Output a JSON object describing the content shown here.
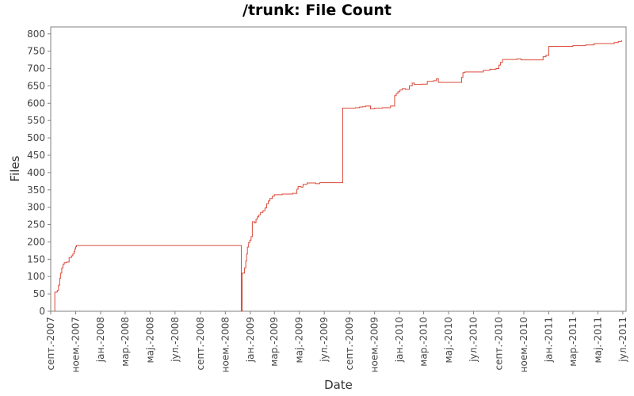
{
  "chart_data": {
    "type": "line",
    "title": "/trunk: File Count",
    "xlabel": "Date",
    "ylabel": "Files",
    "ylim": [
      0,
      820
    ],
    "yticks": [
      0,
      50,
      100,
      150,
      200,
      250,
      300,
      350,
      400,
      450,
      500,
      550,
      600,
      650,
      700,
      750,
      800
    ],
    "xlim": [
      "2007-09-01",
      "2011-07-09"
    ],
    "xticks": [
      {
        "date": "2007-09-01",
        "label": "септ.-2007"
      },
      {
        "date": "2007-11-01",
        "label": "ноем.-2007"
      },
      {
        "date": "2008-01-01",
        "label": "јан.-2008"
      },
      {
        "date": "2008-03-01",
        "label": "мар.-2008"
      },
      {
        "date": "2008-05-01",
        "label": "мај.-2008"
      },
      {
        "date": "2008-07-01",
        "label": "јул.-2008"
      },
      {
        "date": "2008-09-01",
        "label": "септ.-2008"
      },
      {
        "date": "2008-11-01",
        "label": "ноем.-2008"
      },
      {
        "date": "2009-01-01",
        "label": "јан.-2009"
      },
      {
        "date": "2009-03-01",
        "label": "мар.-2009"
      },
      {
        "date": "2009-05-01",
        "label": "мај.-2009"
      },
      {
        "date": "2009-07-01",
        "label": "јул.-2009"
      },
      {
        "date": "2009-09-01",
        "label": "септ.-2009"
      },
      {
        "date": "2009-11-01",
        "label": "ноем.-2009"
      },
      {
        "date": "2010-01-01",
        "label": "јан.-2010"
      },
      {
        "date": "2010-03-01",
        "label": "мар.-2010"
      },
      {
        "date": "2010-05-01",
        "label": "мај.-2010"
      },
      {
        "date": "2010-07-01",
        "label": "јул.-2010"
      },
      {
        "date": "2010-09-01",
        "label": "септ.-2010"
      },
      {
        "date": "2010-11-01",
        "label": "ноем.-2010"
      },
      {
        "date": "2011-01-01",
        "label": "јан.-2011"
      },
      {
        "date": "2011-03-01",
        "label": "мар.-2011"
      },
      {
        "date": "2011-05-01",
        "label": "мај.-2011"
      },
      {
        "date": "2011-07-01",
        "label": "јул.-2011"
      }
    ],
    "grid": false,
    "legend": "none",
    "series": [
      {
        "color": "#d94a3a",
        "step": true,
        "points": [
          [
            "2007-09-11",
            0
          ],
          [
            "2007-09-11",
            55
          ],
          [
            "2007-09-17",
            60
          ],
          [
            "2007-09-20",
            75
          ],
          [
            "2007-09-23",
            95
          ],
          [
            "2007-09-25",
            110
          ],
          [
            "2007-09-28",
            125
          ],
          [
            "2007-10-01",
            135
          ],
          [
            "2007-10-04",
            140
          ],
          [
            "2007-10-10",
            142
          ],
          [
            "2007-10-16",
            155
          ],
          [
            "2007-10-22",
            160
          ],
          [
            "2007-10-25",
            165
          ],
          [
            "2007-10-28",
            172
          ],
          [
            "2007-10-30",
            180
          ],
          [
            "2007-11-01",
            186
          ],
          [
            "2007-11-03",
            190
          ],
          [
            "2008-12-10",
            190
          ],
          [
            "2008-12-10",
            0
          ],
          [
            "2008-12-12",
            0
          ],
          [
            "2008-12-12",
            110
          ],
          [
            "2008-12-18",
            125
          ],
          [
            "2008-12-21",
            145
          ],
          [
            "2008-12-23",
            165
          ],
          [
            "2008-12-25",
            185
          ],
          [
            "2008-12-28",
            198
          ],
          [
            "2008-12-31",
            205
          ],
          [
            "2009-01-03",
            215
          ],
          [
            "2009-01-06",
            258
          ],
          [
            "2009-01-12",
            255
          ],
          [
            "2009-01-15",
            265
          ],
          [
            "2009-01-18",
            272
          ],
          [
            "2009-01-22",
            278
          ],
          [
            "2009-01-26",
            285
          ],
          [
            "2009-02-01",
            290
          ],
          [
            "2009-02-06",
            298
          ],
          [
            "2009-02-10",
            310
          ],
          [
            "2009-02-14",
            318
          ],
          [
            "2009-02-18",
            325
          ],
          [
            "2009-02-24",
            332
          ],
          [
            "2009-03-01",
            336
          ],
          [
            "2009-03-20",
            338
          ],
          [
            "2009-04-15",
            340
          ],
          [
            "2009-04-25",
            352
          ],
          [
            "2009-04-28",
            360
          ],
          [
            "2009-05-05",
            358
          ],
          [
            "2009-05-10",
            366
          ],
          [
            "2009-05-20",
            370
          ],
          [
            "2009-06-10",
            368
          ],
          [
            "2009-06-20",
            371
          ],
          [
            "2009-08-15",
            371
          ],
          [
            "2009-08-15",
            586
          ],
          [
            "2009-09-15",
            587
          ],
          [
            "2009-09-25",
            589
          ],
          [
            "2009-10-02",
            590
          ],
          [
            "2009-10-10",
            592
          ],
          [
            "2009-10-22",
            584
          ],
          [
            "2009-11-01",
            586
          ],
          [
            "2009-11-20",
            587
          ],
          [
            "2009-12-10",
            592
          ],
          [
            "2009-12-20",
            622
          ],
          [
            "2009-12-24",
            628
          ],
          [
            "2009-12-28",
            633
          ],
          [
            "2010-01-02",
            638
          ],
          [
            "2010-01-08",
            642
          ],
          [
            "2010-01-15",
            640
          ],
          [
            "2010-01-25",
            650
          ],
          [
            "2010-02-01",
            658
          ],
          [
            "2010-02-06",
            654
          ],
          [
            "2010-02-25",
            655
          ],
          [
            "2010-03-10",
            663
          ],
          [
            "2010-03-25",
            665
          ],
          [
            "2010-04-01",
            670
          ],
          [
            "2010-04-06",
            660
          ],
          [
            "2010-05-25",
            660
          ],
          [
            "2010-06-02",
            675
          ],
          [
            "2010-06-05",
            688
          ],
          [
            "2010-06-10",
            690
          ],
          [
            "2010-07-20",
            690
          ],
          [
            "2010-07-25",
            695
          ],
          [
            "2010-08-10",
            698
          ],
          [
            "2010-08-25",
            700
          ],
          [
            "2010-09-01",
            710
          ],
          [
            "2010-09-05",
            718
          ],
          [
            "2010-09-10",
            726
          ],
          [
            "2010-10-15",
            728
          ],
          [
            "2010-10-25",
            725
          ],
          [
            "2010-12-15",
            725
          ],
          [
            "2010-12-18",
            734
          ],
          [
            "2010-12-25",
            738
          ],
          [
            "2011-01-01",
            764
          ],
          [
            "2011-02-25",
            764
          ],
          [
            "2011-03-01",
            766
          ],
          [
            "2011-04-01",
            768
          ],
          [
            "2011-04-22",
            772
          ],
          [
            "2011-06-05",
            772
          ],
          [
            "2011-06-10",
            775
          ],
          [
            "2011-06-20",
            778
          ],
          [
            "2011-06-28",
            782
          ]
        ]
      }
    ]
  }
}
